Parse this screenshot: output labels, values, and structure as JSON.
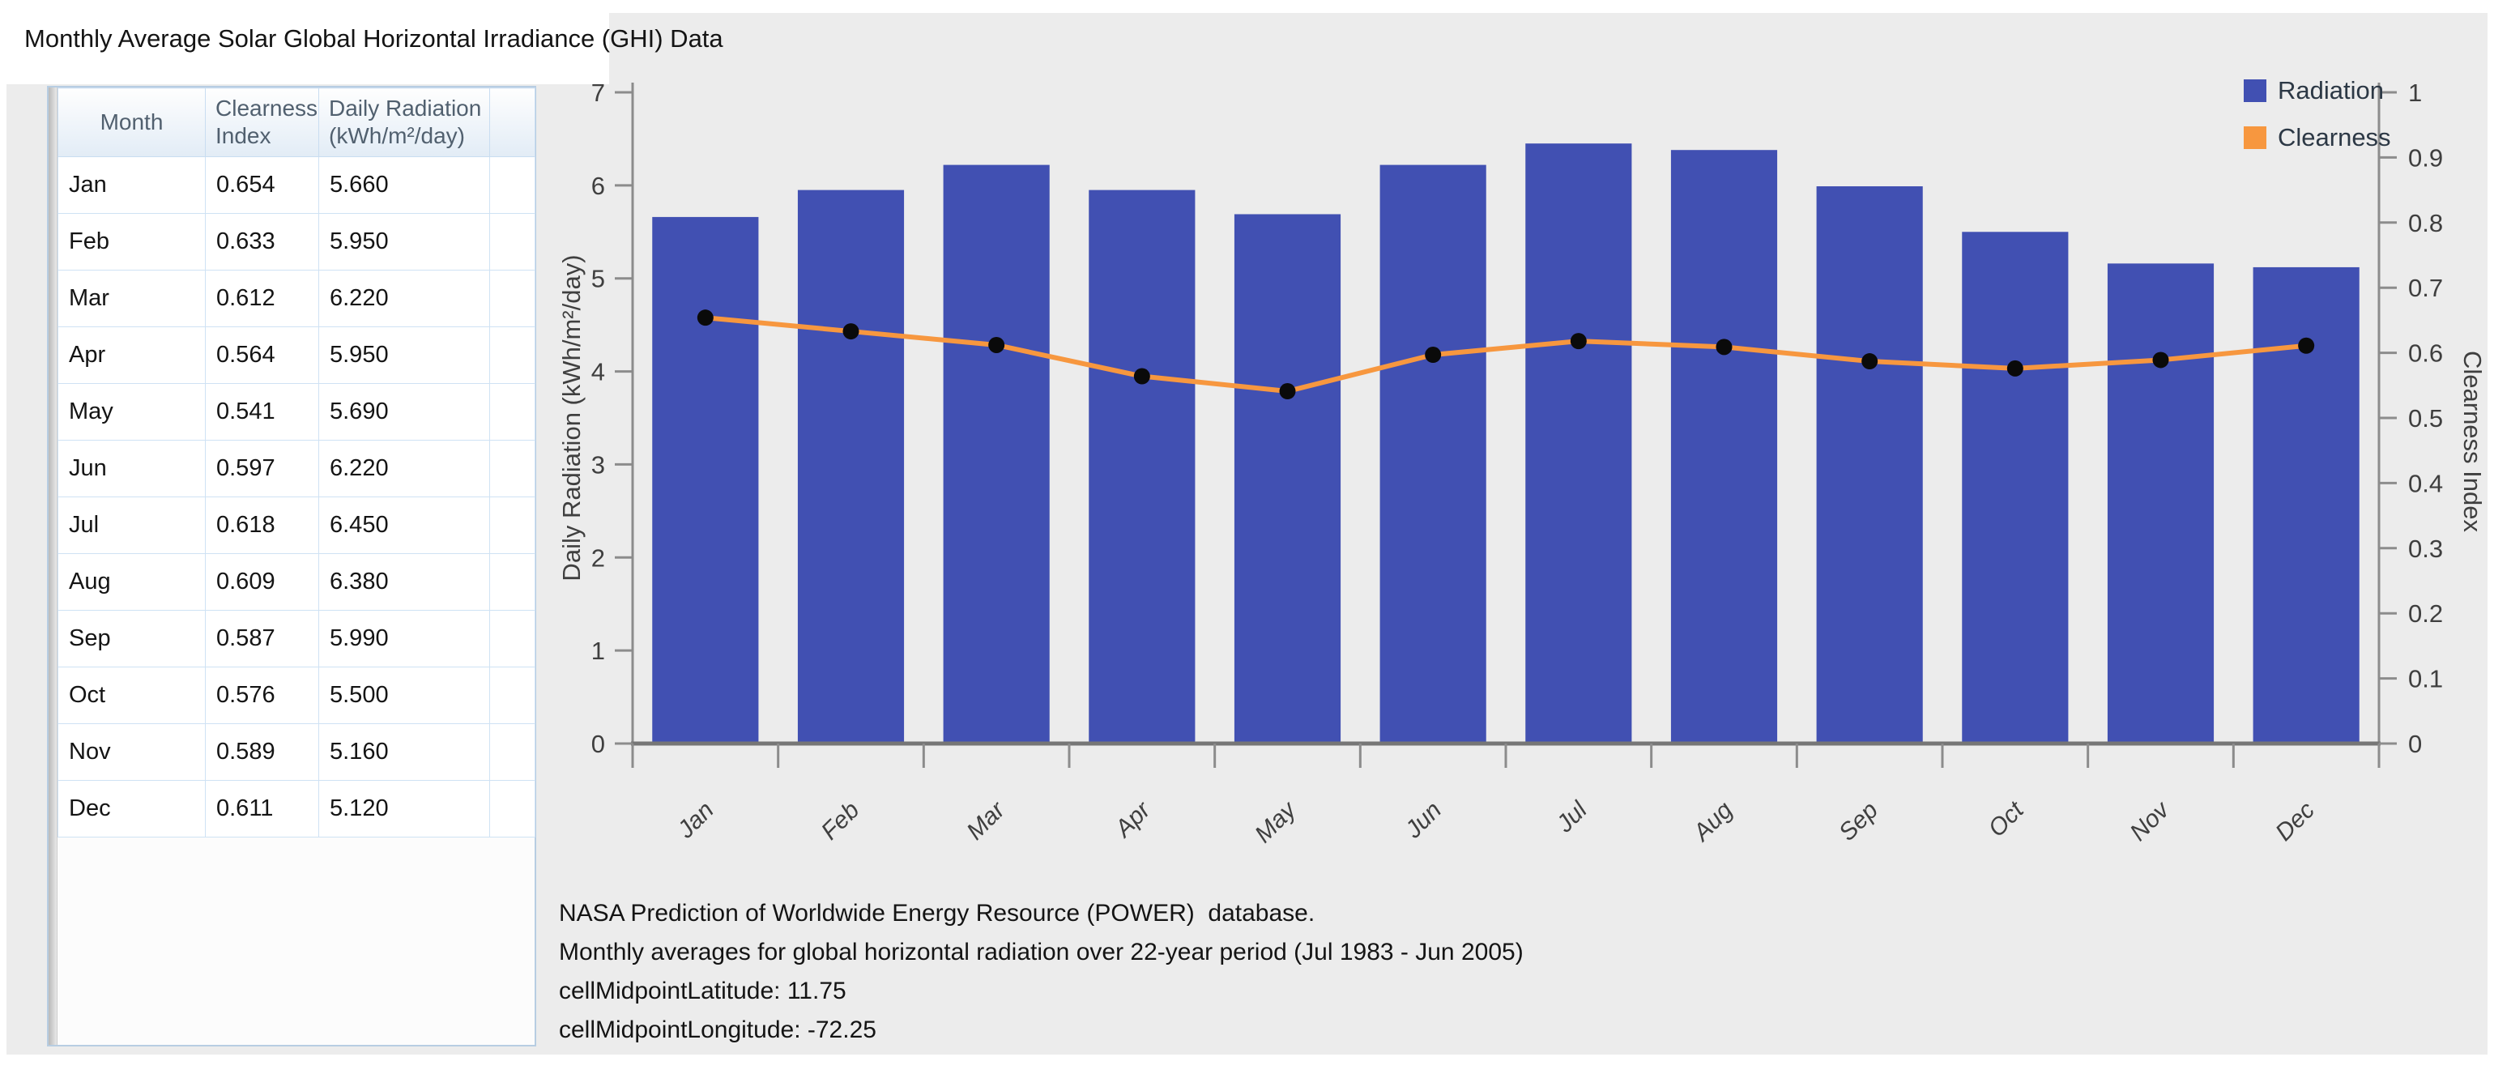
{
  "title": "Monthly Average Solar Global Horizontal Irradiance (GHI) Data",
  "table": {
    "headers": [
      "Month",
      "Clearness Index",
      "Daily Radiation (kWh/m²/day)"
    ],
    "rows": [
      {
        "month": "Jan",
        "clearness": "0.654",
        "radiation": "5.660"
      },
      {
        "month": "Feb",
        "clearness": "0.633",
        "radiation": "5.950"
      },
      {
        "month": "Mar",
        "clearness": "0.612",
        "radiation": "6.220"
      },
      {
        "month": "Apr",
        "clearness": "0.564",
        "radiation": "5.950"
      },
      {
        "month": "May",
        "clearness": "0.541",
        "radiation": "5.690"
      },
      {
        "month": "Jun",
        "clearness": "0.597",
        "radiation": "6.220"
      },
      {
        "month": "Jul",
        "clearness": "0.618",
        "radiation": "6.450"
      },
      {
        "month": "Aug",
        "clearness": "0.609",
        "radiation": "6.380"
      },
      {
        "month": "Sep",
        "clearness": "0.587",
        "radiation": "5.990"
      },
      {
        "month": "Oct",
        "clearness": "0.576",
        "radiation": "5.500"
      },
      {
        "month": "Nov",
        "clearness": "0.589",
        "radiation": "5.160"
      },
      {
        "month": "Dec",
        "clearness": "0.611",
        "radiation": "5.120"
      }
    ]
  },
  "chart_data": {
    "type": "bar",
    "categories": [
      "Jan",
      "Feb",
      "Mar",
      "Apr",
      "May",
      "Jun",
      "Jul",
      "Aug",
      "Sep",
      "Oct",
      "Nov",
      "Dec"
    ],
    "series": [
      {
        "name": "Radiation",
        "type": "bar",
        "axis": "left",
        "color": "#4150b2",
        "values": [
          5.66,
          5.95,
          6.22,
          5.95,
          5.69,
          6.22,
          6.45,
          6.38,
          5.99,
          5.5,
          5.16,
          5.12
        ]
      },
      {
        "name": "Clearness",
        "type": "line",
        "axis": "right",
        "color": "#f7973f",
        "marker_color": "#0a0a0a",
        "values": [
          0.654,
          0.633,
          0.612,
          0.564,
          0.541,
          0.597,
          0.618,
          0.609,
          0.587,
          0.576,
          0.589,
          0.611
        ]
      }
    ],
    "title": "",
    "xlabel": "",
    "ylabel_left": "Daily Radiation (kWh/m²/day)",
    "ylabel_right": "Clearness Index",
    "ylim_left": [
      0,
      7
    ],
    "ytick_left": 1,
    "ylim_right": [
      0,
      1
    ],
    "ytick_right": 0.1,
    "grid": false,
    "legend_position": "top-right"
  },
  "footer": {
    "lines": [
      "NASA Prediction of Worldwide Energy Resource (POWER)  database.",
      "Monthly averages for global horizontal radiation over 22-year period (Jul 1983 - Jun 2005)",
      "cellMidpointLatitude: 11.75",
      "cellMidpointLongitude: -72.25"
    ]
  },
  "colors": {
    "panel_bg": "#ececec",
    "bar": "#4150b2",
    "line": "#f7973f",
    "marker": "#0a0a0a",
    "axis_line": "#8c8c8c",
    "axis_bottom_line": "#767676",
    "axis_text": "#3f3f3f",
    "table_grid": "#cfe2f4",
    "table_border": "#b7cde2",
    "header_text": "#51606f"
  }
}
